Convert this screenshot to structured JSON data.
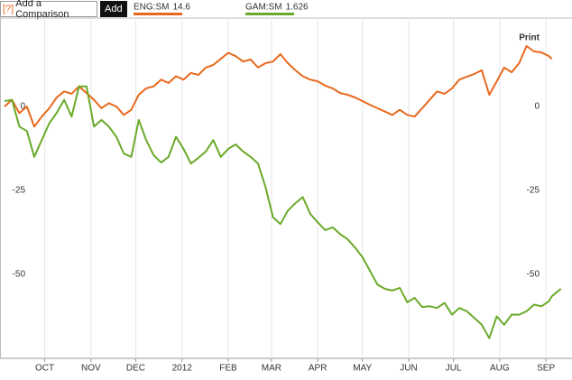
{
  "toolbar": {
    "help": "[?]",
    "input_placeholder": "Add a Comparison",
    "button": "Add",
    "print": "Print"
  },
  "chart_data": {
    "type": "line",
    "x": [
      3,
      8,
      13,
      18,
      23,
      28,
      33,
      38,
      43,
      48,
      53,
      58,
      63,
      68,
      73,
      78,
      83,
      88,
      93,
      98,
      103,
      108,
      113,
      118,
      123,
      128,
      133,
      138,
      143,
      148,
      153,
      158,
      163,
      168,
      173,
      178,
      183,
      188,
      193,
      198,
      203,
      208,
      213,
      218,
      223,
      228,
      233,
      238,
      243,
      248,
      253,
      258,
      263,
      268,
      273,
      278,
      283,
      288,
      293,
      298,
      303,
      308,
      313,
      318,
      323,
      328,
      333,
      338,
      343,
      348,
      353,
      358,
      363,
      368,
      370,
      376
    ],
    "series": [
      {
        "name": "ENG:SM",
        "quote": 14.6,
        "color": "#e8691e",
        "values": [
          0,
          2,
          -2,
          0,
          -6,
          -3,
          -0.5,
          2.7,
          4.5,
          3.8,
          6,
          4,
          2,
          -0.5,
          1,
          0,
          -2.5,
          -1,
          3.5,
          5.4,
          6,
          8,
          7,
          9,
          8,
          10,
          9.4,
          11.6,
          12.4,
          14.2,
          16,
          15,
          13.4,
          14,
          11.6,
          12.9,
          13.4,
          15.6,
          12.9,
          10.8,
          9,
          8,
          7.5,
          6.2,
          5.4,
          4,
          3.5,
          2.7,
          1.6,
          0.5,
          -0.5,
          -1.5,
          -2.5,
          -1,
          -2.5,
          -3,
          -0.5,
          2,
          4.5,
          3.8,
          5.4,
          8,
          8.9,
          9.7,
          10.8,
          3.5,
          7.5,
          11.6,
          10.2,
          12.9,
          18,
          16.4,
          16.1,
          15,
          14.2,
          null
        ]
      },
      {
        "name": "GAM:SM",
        "quote": 1.626,
        "color": "#6aaa2a",
        "values": [
          1.6,
          2,
          -6,
          -7.3,
          -15,
          -10,
          -5,
          -1.9,
          2,
          -3,
          6,
          6,
          -6,
          -4,
          -6,
          -9,
          -14,
          -15,
          -4,
          -10,
          -14.5,
          -16.7,
          -15,
          -9,
          -12.6,
          -17,
          -15.3,
          -13.4,
          -10,
          -15,
          -12.6,
          -11.3,
          -13.4,
          -15,
          -17,
          -24,
          -33,
          -35,
          -31,
          -28.8,
          -27,
          -32,
          -34.5,
          -36.8,
          -36,
          -38,
          -39.5,
          -42,
          -44.9,
          -48.9,
          -53,
          -54.3,
          -54.8,
          -54,
          -58.3,
          -57,
          -59.7,
          -59.5,
          -60,
          -58.5,
          -62,
          -60,
          -61,
          -63,
          -65,
          -69,
          -62.5,
          -65,
          -62,
          -62,
          -61,
          -59,
          -59.5,
          -58,
          -56.5,
          -54.3
        ]
      }
    ],
    "xlim": [
      0,
      375
    ],
    "xticks": [
      {
        "value": 30,
        "label": "OCT"
      },
      {
        "value": 61,
        "label": "NOV"
      },
      {
        "value": 91,
        "label": "DEC"
      },
      {
        "value": 122,
        "label": "2012"
      },
      {
        "value": 153,
        "label": "FEB"
      },
      {
        "value": 182,
        "label": "MAR"
      },
      {
        "value": 213,
        "label": "APR"
      },
      {
        "value": 243,
        "label": "MAY"
      },
      {
        "value": 274,
        "label": "JUN"
      },
      {
        "value": 304,
        "label": "JUL"
      },
      {
        "value": 335,
        "label": "AUG"
      },
      {
        "value": 366,
        "label": "SEP"
      }
    ],
    "ylim": [
      -75,
      25
    ],
    "yticks": [
      -50,
      -25,
      0
    ],
    "grid": true
  }
}
